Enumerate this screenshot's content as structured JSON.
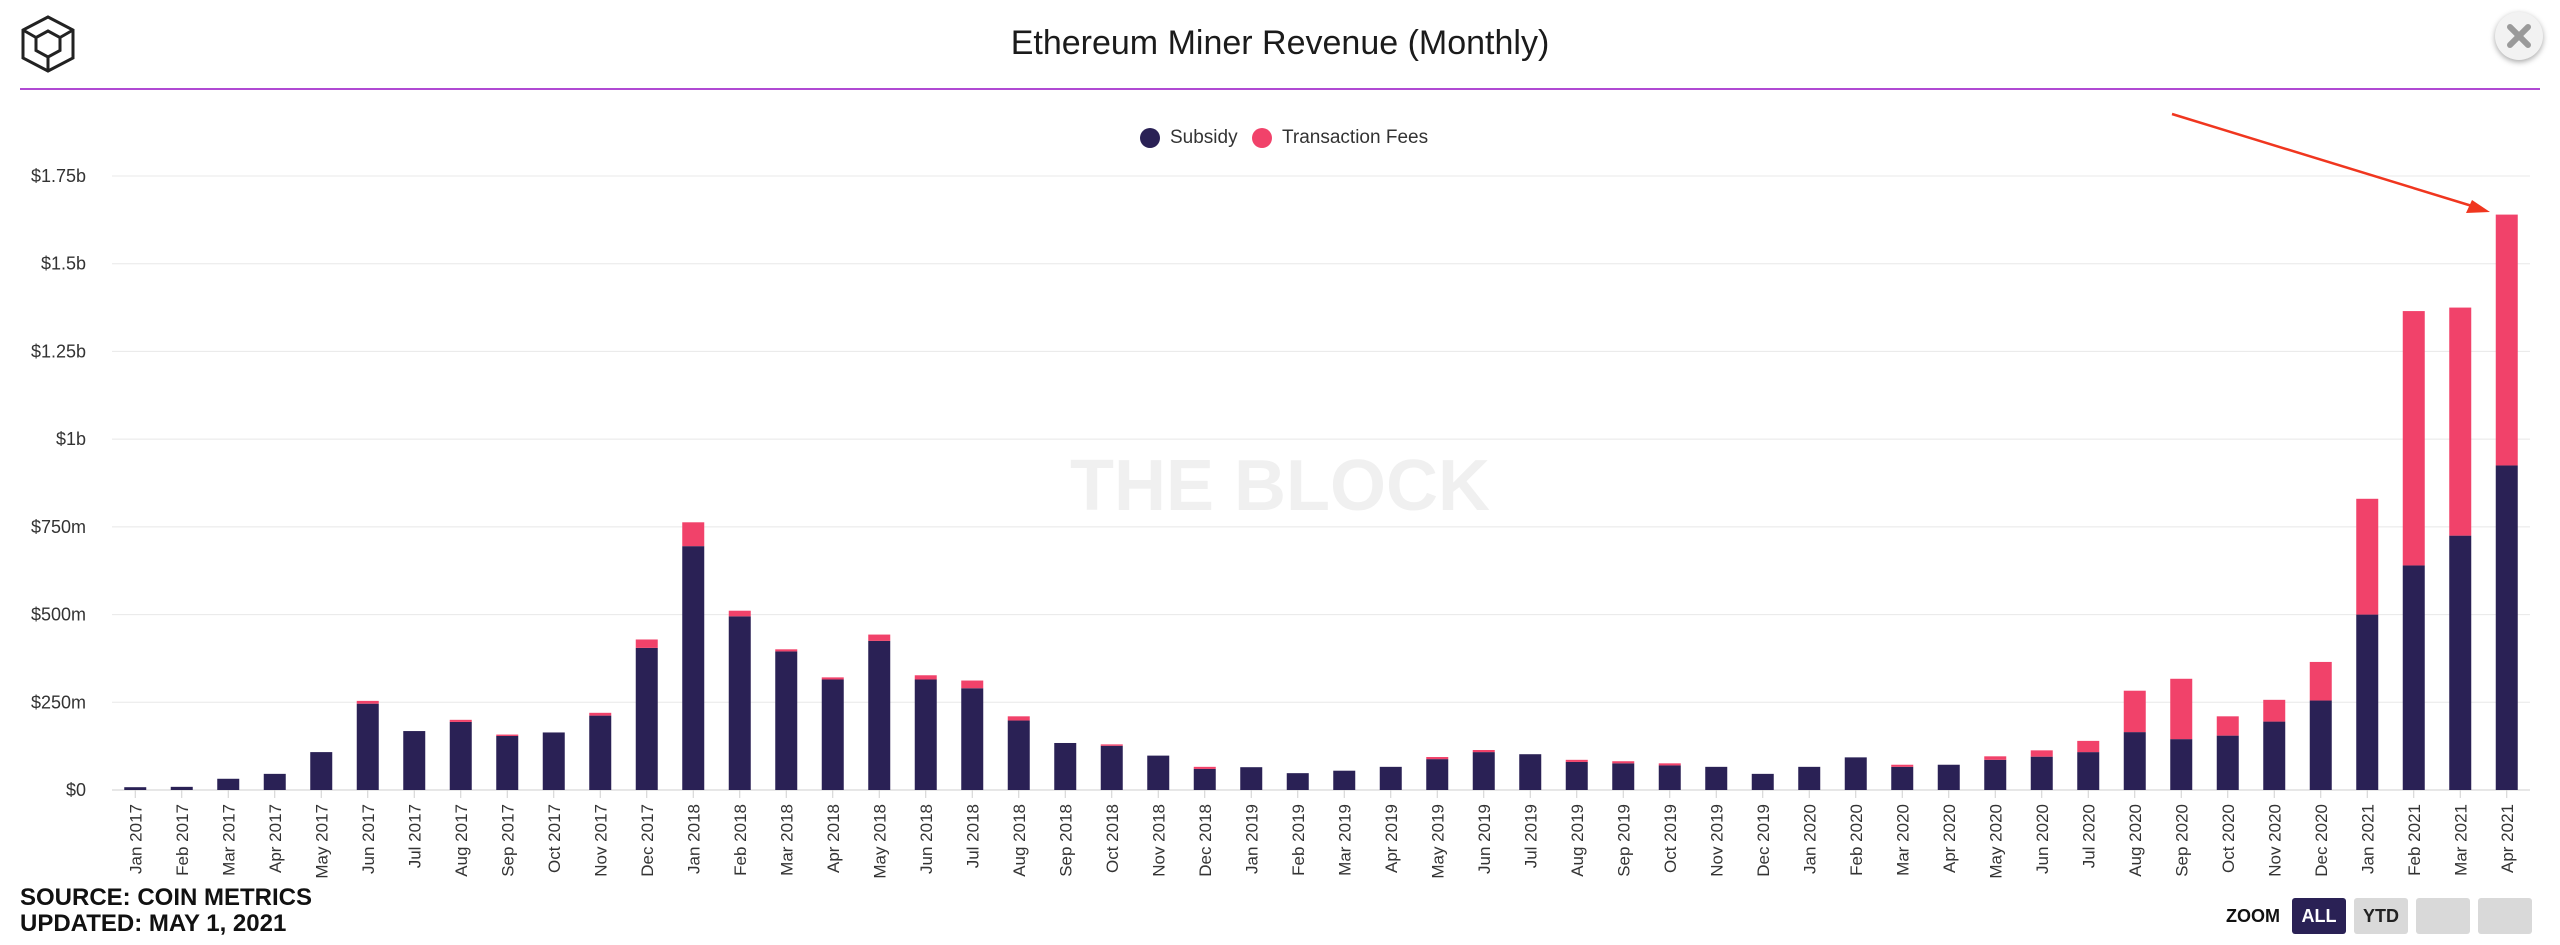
{
  "header": {
    "title": "Ethereum Miner Revenue (Monthly)"
  },
  "watermark": "THE BLOCK",
  "legend": [
    {
      "label": "Subsidy",
      "color": "#2a2155"
    },
    {
      "label": "Transaction Fees",
      "color": "#f1426a"
    }
  ],
  "footer": {
    "source": "SOURCE: COIN METRICS",
    "updated": "UPDATED: MAY 1, 2021"
  },
  "zoom": {
    "label": "ZOOM",
    "options": [
      "ALL",
      "YTD",
      "",
      ""
    ],
    "active": "ALL"
  },
  "annotation": {
    "type": "red-arrow",
    "color": "#f0361f",
    "points_to": "Apr 2021"
  },
  "chart_data": {
    "type": "bar",
    "stacked": true,
    "title": "Ethereum Miner Revenue (Monthly)",
    "xlabel": "",
    "ylabel": "",
    "ylim": [
      0,
      1.75
    ],
    "yunit": "USD billions",
    "yticks": [
      {
        "value": 0,
        "label": "$0"
      },
      {
        "value": 0.25,
        "label": "$250m"
      },
      {
        "value": 0.5,
        "label": "$500m"
      },
      {
        "value": 0.75,
        "label": "$750m"
      },
      {
        "value": 1.0,
        "label": "$1b"
      },
      {
        "value": 1.25,
        "label": "$1.25b"
      },
      {
        "value": 1.5,
        "label": "$1.5b"
      },
      {
        "value": 1.75,
        "label": "$1.75b"
      }
    ],
    "grid": true,
    "legend_position": "top-center",
    "categories": [
      "Jan 2017",
      "Feb 2017",
      "Mar 2017",
      "Apr 2017",
      "May 2017",
      "Jun 2017",
      "Jul 2017",
      "Aug 2017",
      "Sep 2017",
      "Oct 2017",
      "Nov 2017",
      "Dec 2017",
      "Jan 2018",
      "Feb 2018",
      "Mar 2018",
      "Apr 2018",
      "May 2018",
      "Jun 2018",
      "Jul 2018",
      "Aug 2018",
      "Sep 2018",
      "Oct 2018",
      "Nov 2018",
      "Dec 2018",
      "Jan 2019",
      "Feb 2019",
      "Mar 2019",
      "Apr 2019",
      "May 2019",
      "Jun 2019",
      "Jul 2019",
      "Aug 2019",
      "Sep 2019",
      "Oct 2019",
      "Nov 2019",
      "Dec 2019",
      "Jan 2020",
      "Feb 2020",
      "Mar 2020",
      "Apr 2020",
      "May 2020",
      "Jun 2020",
      "Jul 2020",
      "Aug 2020",
      "Sep 2020",
      "Oct 2020",
      "Nov 2020",
      "Dec 2020",
      "Jan 2021",
      "Feb 2021",
      "Mar 2021",
      "Apr 2021"
    ],
    "series": [
      {
        "name": "Subsidy",
        "color": "#2a2155",
        "values": [
          0.008,
          0.009,
          0.032,
          0.046,
          0.108,
          0.246,
          0.168,
          0.194,
          0.154,
          0.164,
          0.212,
          0.405,
          0.695,
          0.495,
          0.395,
          0.315,
          0.425,
          0.315,
          0.29,
          0.198,
          0.134,
          0.126,
          0.098,
          0.06,
          0.065,
          0.048,
          0.055,
          0.066,
          0.088,
          0.108,
          0.102,
          0.08,
          0.076,
          0.07,
          0.066,
          0.046,
          0.066,
          0.093,
          0.066,
          0.072,
          0.086,
          0.095,
          0.108,
          0.165,
          0.145,
          0.155,
          0.195,
          0.255,
          0.5,
          0.64,
          0.725,
          0.925
        ]
      },
      {
        "name": "Transaction Fees",
        "color": "#f1426a",
        "values": [
          0.0,
          0.0,
          0.0,
          0.0,
          0.0,
          0.008,
          0.0,
          0.006,
          0.004,
          0.0,
          0.008,
          0.024,
          0.068,
          0.016,
          0.006,
          0.006,
          0.018,
          0.012,
          0.022,
          0.012,
          0.0,
          0.004,
          0.0,
          0.006,
          0.0,
          0.0,
          0.0,
          0.0,
          0.006,
          0.006,
          0.0,
          0.006,
          0.006,
          0.006,
          0.0,
          0.0,
          0.0,
          0.0,
          0.006,
          0.0,
          0.01,
          0.018,
          0.032,
          0.118,
          0.172,
          0.055,
          0.062,
          0.11,
          0.33,
          0.725,
          0.65,
          0.715
        ]
      }
    ]
  }
}
